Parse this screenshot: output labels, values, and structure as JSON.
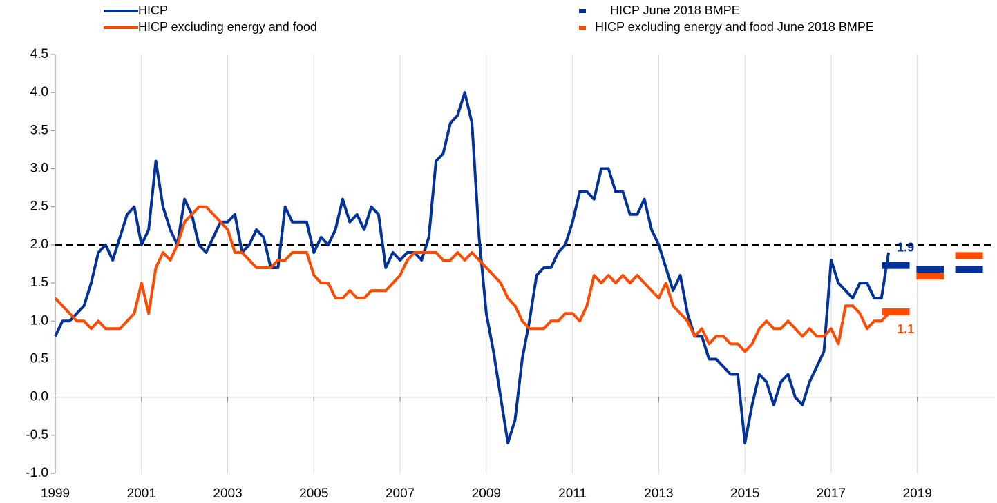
{
  "chart_data": {
    "type": "line",
    "xlim": [
      1999,
      2020.8
    ],
    "xticks": [
      1999,
      2001,
      2003,
      2005,
      2007,
      2009,
      2011,
      2013,
      2015,
      2017,
      2019
    ],
    "ylim": [
      -1.0,
      4.5
    ],
    "yticks": [
      {
        "value": 4.5,
        "label": "4.5"
      },
      {
        "value": 4.0,
        "label": "4.0"
      },
      {
        "value": 3.5,
        "label": "3.5"
      },
      {
        "value": 3.0,
        "label": "3.0"
      },
      {
        "value": 2.5,
        "label": "2.5"
      },
      {
        "value": 2.0,
        "label": "2.0"
      },
      {
        "value": 1.5,
        "label": "1.5"
      },
      {
        "value": 1.0,
        "label": "1.0"
      },
      {
        "value": 0.5,
        "label": "0.5"
      },
      {
        "value": 0.0,
        "label": "0.0"
      },
      {
        "value": -0.5,
        "label": "-0.5"
      },
      {
        "value": -1.0,
        "label": "-1.0"
      }
    ],
    "grid": true,
    "hline": 2.0,
    "x": [
      1999.0,
      1999.167,
      1999.333,
      1999.5,
      1999.667,
      1999.833,
      2000.0,
      2000.167,
      2000.333,
      2000.5,
      2000.667,
      2000.833,
      2001.0,
      2001.167,
      2001.333,
      2001.5,
      2001.667,
      2001.833,
      2002.0,
      2002.167,
      2002.333,
      2002.5,
      2002.667,
      2002.833,
      2003.0,
      2003.167,
      2003.333,
      2003.5,
      2003.667,
      2003.833,
      2004.0,
      2004.167,
      2004.333,
      2004.5,
      2004.667,
      2004.833,
      2005.0,
      2005.167,
      2005.333,
      2005.5,
      2005.667,
      2005.833,
      2006.0,
      2006.167,
      2006.333,
      2006.5,
      2006.667,
      2006.833,
      2007.0,
      2007.167,
      2007.333,
      2007.5,
      2007.667,
      2007.833,
      2008.0,
      2008.167,
      2008.333,
      2008.5,
      2008.667,
      2008.833,
      2009.0,
      2009.167,
      2009.333,
      2009.5,
      2009.667,
      2009.833,
      2010.0,
      2010.167,
      2010.333,
      2010.5,
      2010.667,
      2010.833,
      2011.0,
      2011.167,
      2011.333,
      2011.5,
      2011.667,
      2011.833,
      2012.0,
      2012.167,
      2012.333,
      2012.5,
      2012.667,
      2012.833,
      2013.0,
      2013.167,
      2013.333,
      2013.5,
      2013.667,
      2013.833,
      2014.0,
      2014.167,
      2014.333,
      2014.5,
      2014.667,
      2014.833,
      2015.0,
      2015.167,
      2015.333,
      2015.5,
      2015.667,
      2015.833,
      2016.0,
      2016.167,
      2016.333,
      2016.5,
      2016.667,
      2016.833,
      2017.0,
      2017.167,
      2017.333,
      2017.5,
      2017.667,
      2017.833,
      2018.0,
      2018.167,
      2018.333
    ],
    "series": [
      {
        "name": "HICP",
        "color": "#003299",
        "marker": "line",
        "last_label": "1.9",
        "values": [
          0.8,
          1.0,
          1.0,
          1.1,
          1.2,
          1.5,
          1.9,
          2.0,
          1.8,
          2.1,
          2.4,
          2.5,
          2.0,
          2.2,
          3.1,
          2.5,
          2.2,
          2.0,
          2.6,
          2.4,
          2.0,
          1.9,
          2.1,
          2.3,
          2.3,
          2.4,
          1.9,
          2.0,
          2.2,
          2.1,
          1.7,
          1.7,
          2.5,
          2.3,
          2.3,
          2.3,
          1.9,
          2.1,
          2.0,
          2.2,
          2.6,
          2.3,
          2.4,
          2.2,
          2.5,
          2.4,
          1.7,
          1.9,
          1.8,
          1.9,
          1.9,
          1.8,
          2.1,
          3.1,
          3.2,
          3.6,
          3.7,
          4.0,
          3.6,
          2.1,
          1.1,
          0.6,
          0.0,
          -0.6,
          -0.3,
          0.5,
          1.0,
          1.6,
          1.7,
          1.7,
          1.9,
          2.0,
          2.3,
          2.7,
          2.7,
          2.6,
          3.0,
          3.0,
          2.7,
          2.7,
          2.4,
          2.4,
          2.6,
          2.2,
          2.0,
          1.7,
          1.4,
          1.6,
          1.1,
          0.8,
          0.8,
          0.5,
          0.5,
          0.4,
          0.3,
          0.3,
          -0.6,
          -0.1,
          0.3,
          0.2,
          -0.1,
          0.2,
          0.3,
          0.0,
          -0.1,
          0.2,
          0.4,
          0.6,
          1.8,
          1.5,
          1.4,
          1.3,
          1.5,
          1.5,
          1.3,
          1.3,
          1.9
        ]
      },
      {
        "name": "HICP excluding energy and food",
        "color": "#ff4b00",
        "marker": "line",
        "last_label": "1.1",
        "values": [
          1.3,
          1.2,
          1.1,
          1.0,
          1.0,
          0.9,
          1.0,
          0.9,
          0.9,
          0.9,
          1.0,
          1.1,
          1.5,
          1.1,
          1.7,
          1.9,
          1.8,
          2.0,
          2.3,
          2.4,
          2.5,
          2.5,
          2.4,
          2.3,
          2.2,
          1.9,
          1.9,
          1.8,
          1.7,
          1.7,
          1.7,
          1.8,
          1.8,
          1.9,
          1.9,
          1.9,
          1.6,
          1.5,
          1.5,
          1.3,
          1.3,
          1.4,
          1.3,
          1.3,
          1.4,
          1.4,
          1.4,
          1.5,
          1.6,
          1.8,
          1.9,
          1.9,
          1.9,
          1.9,
          1.8,
          1.8,
          1.9,
          1.8,
          1.9,
          1.8,
          1.7,
          1.6,
          1.5,
          1.3,
          1.2,
          1.0,
          0.9,
          0.9,
          0.9,
          1.0,
          1.0,
          1.1,
          1.1,
          1.0,
          1.2,
          1.6,
          1.5,
          1.6,
          1.5,
          1.6,
          1.5,
          1.6,
          1.5,
          1.4,
          1.3,
          1.5,
          1.2,
          1.1,
          1.0,
          0.8,
          0.9,
          0.7,
          0.8,
          0.8,
          0.7,
          0.7,
          0.6,
          0.7,
          0.9,
          1.0,
          0.9,
          0.9,
          1.0,
          0.9,
          0.8,
          0.9,
          0.8,
          0.8,
          0.9,
          0.7,
          1.2,
          1.2,
          1.1,
          0.9,
          1.0,
          1.0,
          1.1
        ]
      },
      {
        "name": "HICP June 2018 BMPE",
        "color": "#003299",
        "marker": "dash",
        "x": [
          2018.5,
          2019.3,
          2020.2
        ],
        "values": [
          1.73,
          1.68,
          1.68
        ]
      },
      {
        "name": "HICP excluding energy and food June 2018 BMPE",
        "color": "#ff4b00",
        "marker": "dash",
        "x": [
          2018.5,
          2019.3,
          2020.2
        ],
        "values": [
          1.12,
          1.59,
          1.86
        ]
      }
    ]
  }
}
